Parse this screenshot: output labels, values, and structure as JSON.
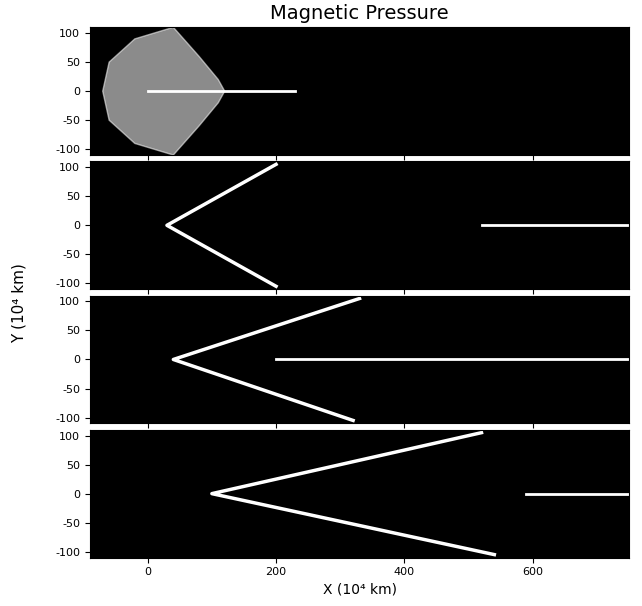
{
  "chart_data": {
    "type": "image",
    "title": "Magnetic Pressure",
    "x_label": "X (10⁴ km)",
    "y_label": "Y (10⁴ km)",
    "xlim": [
      -90,
      750
    ],
    "ylim": [
      -110,
      110
    ],
    "xticks": [
      0,
      200,
      400,
      600
    ],
    "yticks": [
      100,
      50,
      0,
      -50,
      -100
    ],
    "color": "#ffffff",
    "panels": [
      {
        "region": {
          "x": [
            40,
            -20,
            -60,
            -70,
            -60,
            -20,
            40,
            80,
            110,
            120,
            110,
            80
          ],
          "y": [
            110,
            90,
            50,
            0,
            -50,
            -90,
            -110,
            -60,
            -20,
            0,
            20,
            60
          ]
        },
        "tail": {
          "x": [
            0,
            230
          ],
          "y": [
            0,
            0
          ]
        }
      },
      {
        "shock": {
          "x": [
            200,
            30,
            200
          ],
          "y": [
            105,
            0,
            -105
          ]
        },
        "tail": {
          "x": [
            520,
            750
          ],
          "y": [
            0,
            0
          ]
        }
      },
      {
        "shock": {
          "x": [
            330,
            40,
            320
          ],
          "y": [
            105,
            0,
            -105
          ]
        },
        "tail": {
          "x": [
            200,
            750
          ],
          "y": [
            0,
            0
          ]
        }
      },
      {
        "shock": {
          "x": [
            520,
            100,
            540
          ],
          "y": [
            105,
            0,
            -105
          ]
        },
        "tail": {
          "x": [
            590,
            750
          ],
          "y": [
            0,
            0
          ]
        }
      }
    ]
  }
}
